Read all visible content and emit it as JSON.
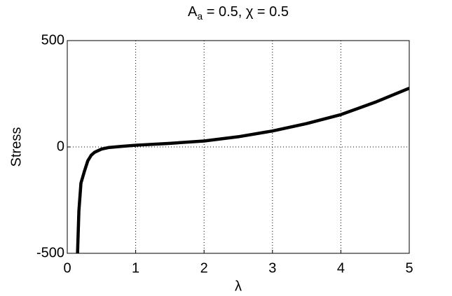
{
  "chart_data": {
    "type": "line",
    "title": {
      "base": "A",
      "sub": "a",
      "rest": " = 0.5, χ = 0.5"
    },
    "x_label": "λ",
    "y_label": "Stress",
    "x": [
      0.15,
      0.17,
      0.2,
      0.25,
      0.3,
      0.35,
      0.4,
      0.5,
      0.6,
      0.8,
      1,
      1.5,
      2,
      2.5,
      3,
      3.5,
      4,
      4.5,
      5
    ],
    "series": [
      {
        "name": "Stress",
        "color": "#000000",
        "values": [
          -500,
          -300,
          -170,
          -115,
          -65,
          -39,
          -25,
          -10,
          -3,
          3,
          8,
          17,
          28,
          48,
          75,
          110,
          152,
          210,
          276
        ]
      }
    ],
    "xlim": [
      0,
      5
    ],
    "ylim": [
      -500,
      500
    ],
    "xticks": [
      0,
      1,
      2,
      3,
      4,
      5
    ],
    "yticks": [
      -500,
      0,
      500
    ],
    "grid": true
  }
}
